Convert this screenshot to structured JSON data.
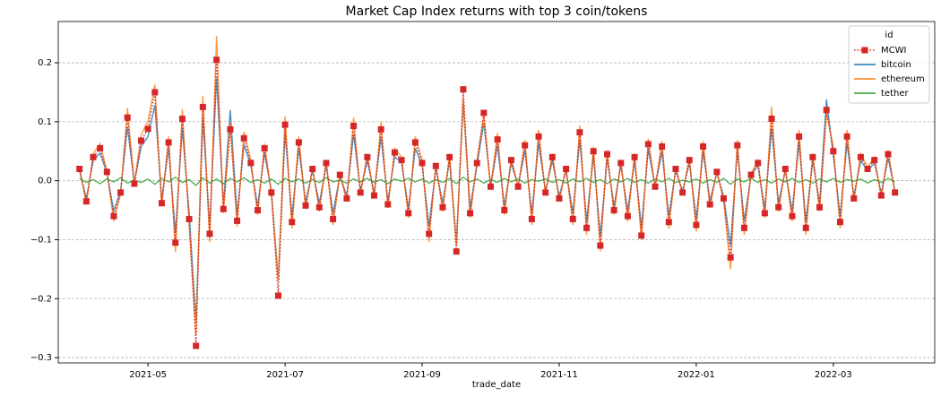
{
  "chart_data": {
    "type": "line",
    "title": "Market Cap Index returns with top 3 coin/tokens",
    "xlabel": "trade_date",
    "legend_title": "id",
    "legend": "upper right",
    "grid": "y",
    "xlim": [
      3.69,
      16.48
    ],
    "xticks": [
      {
        "value": 5,
        "label": "2021-05"
      },
      {
        "value": 7,
        "label": "2021-07"
      },
      {
        "value": 9,
        "label": "2021-09"
      },
      {
        "value": 11,
        "label": "2021-11"
      },
      {
        "value": 13,
        "label": "2022-01"
      },
      {
        "value": 15,
        "label": "2022-03"
      }
    ],
    "ylim": [
      -0.309,
      0.27
    ],
    "yticks": [
      {
        "value": -0.3,
        "label": "−0.3"
      },
      {
        "value": -0.2,
        "label": "−0.2"
      },
      {
        "value": -0.1,
        "label": "−0.1"
      },
      {
        "value": 0,
        "label": "0.0"
      },
      0.1,
      0.2
    ],
    "x": [
      4.0,
      4.1,
      4.2,
      4.3,
      4.4,
      4.5,
      4.6,
      4.7,
      4.8,
      4.9,
      5.0,
      5.1,
      5.2,
      5.3,
      5.4,
      5.5,
      5.6,
      5.7,
      5.8,
      5.9,
      6.0,
      6.1,
      6.2,
      6.3,
      6.4,
      6.5,
      6.6,
      6.7,
      6.8,
      6.9,
      7.0,
      7.1,
      7.2,
      7.3,
      7.4,
      7.5,
      7.6,
      7.7,
      7.8,
      7.9,
      8.0,
      8.1,
      8.2,
      8.3,
      8.4,
      8.5,
      8.6,
      8.7,
      8.8,
      8.9,
      9.0,
      9.1,
      9.2,
      9.3,
      9.4,
      9.5,
      9.6,
      9.7,
      9.8,
      9.9,
      10.0,
      10.1,
      10.2,
      10.3,
      10.4,
      10.5,
      10.6,
      10.7,
      10.8,
      10.9,
      11.0,
      11.1,
      11.2,
      11.3,
      11.4,
      11.5,
      11.6,
      11.7,
      11.8,
      11.9,
      12.0,
      12.1,
      12.2,
      12.3,
      12.4,
      12.5,
      12.6,
      12.7,
      12.8,
      12.9,
      13.0,
      13.1,
      13.2,
      13.3,
      13.4,
      13.5,
      13.6,
      13.7,
      13.8,
      13.9,
      14.0,
      14.1,
      14.2,
      14.3,
      14.4,
      14.5,
      14.6,
      14.7,
      14.8,
      14.9,
      15.0,
      15.1,
      15.2,
      15.3,
      15.4,
      15.5,
      15.6,
      15.7,
      15.8,
      15.9
    ],
    "series": [
      {
        "name": "bitcoin",
        "color": "#1f77b4",
        "linestyle": "solid",
        "values": [
          0.017,
          -0.03,
          0.034,
          0.047,
          0.013,
          -0.051,
          -0.017,
          0.091,
          -0.004,
          0.058,
          0.075,
          0.128,
          -0.032,
          0.055,
          -0.089,
          0.089,
          -0.055,
          -0.238,
          0.106,
          -0.077,
          0.174,
          -0.041,
          0.12,
          -0.058,
          0.061,
          0.026,
          -0.043,
          0.047,
          -0.017,
          -0.166,
          0.081,
          -0.06,
          0.055,
          -0.036,
          0.017,
          -0.038,
          0.026,
          -0.055,
          0.009,
          -0.026,
          0.079,
          -0.017,
          0.034,
          -0.021,
          0.074,
          -0.034,
          0.041,
          0.03,
          -0.047,
          0.055,
          0.026,
          -0.077,
          0.021,
          -0.038,
          0.034,
          -0.102,
          0.132,
          -0.047,
          0.026,
          0.098,
          -0.009,
          0.06,
          -0.043,
          0.03,
          -0.009,
          0.051,
          -0.055,
          0.064,
          -0.017,
          0.034,
          -0.026,
          0.017,
          -0.055,
          0.07,
          -0.068,
          0.043,
          -0.094,
          0.038,
          -0.043,
          0.026,
          -0.051,
          0.034,
          -0.079,
          0.053,
          -0.009,
          0.049,
          -0.06,
          0.017,
          -0.017,
          0.03,
          -0.064,
          0.049,
          -0.034,
          0.013,
          -0.026,
          -0.11,
          0.051,
          -0.068,
          0.009,
          0.026,
          -0.047,
          0.089,
          -0.038,
          0.017,
          -0.051,
          0.064,
          -0.068,
          0.034,
          -0.038,
          0.138,
          0.043,
          -0.06,
          0.064,
          -0.026,
          0.034,
          0.017,
          0.03,
          -0.021,
          0.038,
          -0.017
        ]
      },
      {
        "name": "ethereum",
        "color": "#ff7f0e",
        "linestyle": "solid",
        "values": [
          0.023,
          -0.04,
          0.046,
          0.063,
          0.017,
          -0.069,
          -0.023,
          0.123,
          -0.006,
          0.078,
          0.101,
          0.163,
          -0.044,
          0.075,
          -0.121,
          0.121,
          -0.075,
          -0.26,
          0.144,
          -0.104,
          0.245,
          -0.055,
          0.1,
          -0.078,
          0.083,
          0.035,
          -0.058,
          0.063,
          -0.023,
          -0.17,
          0.109,
          -0.081,
          0.075,
          -0.048,
          0.023,
          -0.052,
          0.035,
          -0.075,
          0.012,
          -0.035,
          0.107,
          -0.023,
          0.046,
          -0.029,
          0.1,
          -0.046,
          0.055,
          0.04,
          -0.063,
          0.075,
          0.035,
          -0.104,
          0.029,
          -0.052,
          0.046,
          -0.11,
          0.14,
          -0.063,
          0.035,
          0.11,
          -0.012,
          0.081,
          -0.058,
          0.04,
          -0.012,
          0.069,
          -0.075,
          0.086,
          -0.023,
          0.046,
          -0.035,
          0.023,
          -0.075,
          0.094,
          -0.092,
          0.058,
          -0.12,
          0.052,
          -0.058,
          0.035,
          -0.069,
          0.046,
          -0.1,
          0.071,
          -0.012,
          0.067,
          -0.081,
          0.023,
          -0.023,
          0.04,
          -0.086,
          0.067,
          -0.046,
          0.017,
          -0.035,
          -0.15,
          0.069,
          -0.092,
          0.012,
          0.035,
          -0.063,
          0.125,
          -0.052,
          0.023,
          -0.069,
          0.086,
          -0.092,
          0.046,
          -0.052,
          0.115,
          0.058,
          -0.081,
          0.086,
          -0.035,
          0.046,
          0.023,
          0.04,
          -0.029,
          0.052,
          -0.023
        ]
      },
      {
        "name": "tether",
        "color": "#2ca02c",
        "linestyle": "solid",
        "values": [
          0.004,
          -0.003,
          0.002,
          -0.005,
          0.003,
          -0.002,
          0.005,
          -0.004,
          0.001,
          -0.003,
          0.003,
          -0.006,
          0.004,
          -0.002,
          0.006,
          -0.003,
          0.002,
          -0.008,
          0.005,
          -0.004,
          0.003,
          -0.005,
          0.004,
          -0.002,
          0.005,
          -0.003,
          0.002,
          -0.004,
          0.003,
          -0.006,
          0.004,
          -0.002,
          0.003,
          -0.004,
          0.002,
          -0.003,
          0.005,
          -0.002,
          0.001,
          -0.004,
          0.003,
          -0.002,
          0.004,
          -0.003,
          0.002,
          -0.005,
          0.003,
          -0.001,
          0.004,
          -0.002,
          0.003,
          -0.004,
          0.002,
          -0.003,
          0.004,
          -0.005,
          0.006,
          -0.002,
          0.003,
          -0.004,
          0.002,
          -0.003,
          0.004,
          -0.002,
          0.003,
          -0.004,
          0.002,
          -0.001,
          0.003,
          -0.003,
          0.002,
          -0.004,
          0.003,
          -0.002,
          0.004,
          -0.003,
          0.002,
          -0.005,
          0.003,
          -0.002,
          0.004,
          -0.003,
          0.002,
          -0.004,
          0.003,
          -0.002,
          0.004,
          -0.003,
          0.001,
          -0.002,
          0.003,
          -0.004,
          0.002,
          -0.003,
          0.004,
          -0.006,
          0.003,
          -0.002,
          0.004,
          -0.003,
          0.002,
          -0.004,
          0.003,
          -0.002,
          0.004,
          -0.003,
          0.002,
          -0.004,
          0.003,
          -0.002,
          0.004,
          -0.003,
          0.002,
          -0.001,
          0.003,
          -0.004,
          0.002,
          -0.003,
          0.004,
          -0.002
        ]
      },
      {
        "name": "MCWI",
        "color": "#d62728",
        "linestyle": "dotted",
        "marker": "square",
        "values": [
          0.02,
          -0.035,
          0.04,
          0.055,
          0.015,
          -0.06,
          -0.02,
          0.107,
          -0.005,
          0.068,
          0.088,
          0.15,
          -0.038,
          0.065,
          -0.105,
          0.105,
          -0.065,
          -0.28,
          0.125,
          -0.09,
          0.205,
          -0.048,
          0.087,
          -0.068,
          0.072,
          0.03,
          -0.05,
          0.055,
          -0.02,
          -0.195,
          0.095,
          -0.07,
          0.065,
          -0.042,
          0.02,
          -0.045,
          0.03,
          -0.065,
          0.01,
          -0.03,
          0.093,
          -0.02,
          0.04,
          -0.025,
          0.087,
          -0.04,
          0.048,
          0.035,
          -0.055,
          0.065,
          0.03,
          -0.09,
          0.025,
          -0.045,
          0.04,
          -0.12,
          0.155,
          -0.055,
          0.03,
          0.115,
          -0.01,
          0.07,
          -0.05,
          0.035,
          -0.01,
          0.06,
          -0.065,
          0.075,
          -0.02,
          0.04,
          -0.03,
          0.02,
          -0.065,
          0.082,
          -0.08,
          0.05,
          -0.11,
          0.045,
          -0.05,
          0.03,
          -0.06,
          0.04,
          -0.093,
          0.062,
          -0.01,
          0.058,
          -0.07,
          0.02,
          -0.02,
          0.035,
          -0.075,
          0.058,
          -0.04,
          0.015,
          -0.03,
          -0.13,
          0.06,
          -0.08,
          0.01,
          0.03,
          -0.055,
          0.105,
          -0.045,
          0.02,
          -0.06,
          0.075,
          -0.08,
          0.04,
          -0.045,
          0.12,
          0.05,
          -0.07,
          0.075,
          -0.03,
          0.04,
          0.02,
          0.035,
          -0.025,
          0.045,
          -0.02
        ]
      }
    ]
  }
}
